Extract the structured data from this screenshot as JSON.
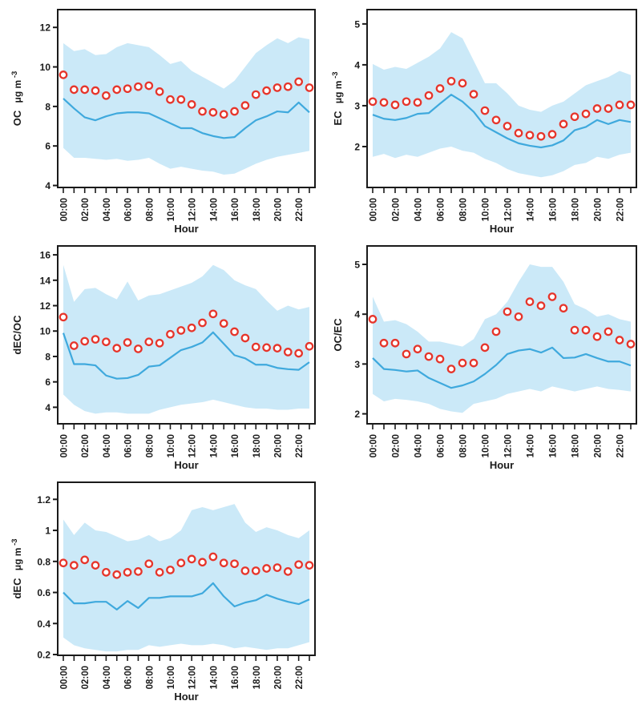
{
  "figure": {
    "xlabel": "Hour",
    "background": "#ffffff",
    "hour_label_every": 2
  },
  "colors": {
    "band": "#cbe9f8",
    "line": "#3fa9dd",
    "marker": "#e6352b",
    "marker_fill": "#ffffff",
    "axis": "#1a1a1a",
    "text": "#1a1a1a"
  },
  "chart_data": [
    {
      "type": "area",
      "name": "chart-oc",
      "ylabel": "OC",
      "yunit": "μg m",
      "ysup": "-3",
      "xlabel": "Hour",
      "yticks": [
        4,
        6,
        8,
        10,
        12
      ],
      "ylim": [
        3.9,
        12.9
      ],
      "grid": false,
      "legend": "none",
      "categories": [
        "00:00",
        "01:00",
        "02:00",
        "03:00",
        "04:00",
        "05:00",
        "06:00",
        "07:00",
        "08:00",
        "09:00",
        "10:00",
        "11:00",
        "12:00",
        "13:00",
        "14:00",
        "15:00",
        "16:00",
        "17:00",
        "18:00",
        "19:00",
        "20:00",
        "21:00",
        "22:00",
        "23:00"
      ],
      "series": [
        {
          "name": "hourly-mean",
          "style": "scatter",
          "marker": "open-circle",
          "values": [
            9.6,
            8.85,
            8.85,
            8.8,
            8.55,
            8.85,
            8.9,
            9.0,
            9.05,
            8.75,
            8.35,
            8.35,
            8.1,
            7.75,
            7.7,
            7.6,
            7.75,
            8.05,
            8.6,
            8.8,
            8.95,
            9.0,
            9.25,
            8.95
          ]
        },
        {
          "name": "median",
          "style": "line",
          "values": [
            8.4,
            7.9,
            7.45,
            7.3,
            7.5,
            7.65,
            7.7,
            7.7,
            7.65,
            7.4,
            7.15,
            6.9,
            6.9,
            6.65,
            6.5,
            6.4,
            6.45,
            6.9,
            7.3,
            7.5,
            7.75,
            7.7,
            8.2,
            7.7
          ]
        },
        {
          "name": "band-upper",
          "style": "band-upper",
          "values": [
            11.2,
            10.8,
            10.9,
            10.6,
            10.65,
            11.0,
            11.2,
            11.1,
            11.0,
            10.6,
            10.15,
            10.3,
            9.8,
            9.5,
            9.2,
            8.9,
            9.3,
            10.0,
            10.7,
            11.1,
            11.45,
            11.2,
            11.5,
            11.4
          ]
        },
        {
          "name": "band-lower",
          "style": "band-lower",
          "values": [
            5.9,
            5.4,
            5.4,
            5.35,
            5.3,
            5.35,
            5.25,
            5.3,
            5.4,
            5.1,
            4.85,
            4.95,
            4.85,
            4.75,
            4.7,
            4.55,
            4.6,
            4.85,
            5.1,
            5.3,
            5.45,
            5.55,
            5.65,
            5.75
          ]
        }
      ]
    },
    {
      "type": "area",
      "name": "chart-ec",
      "ylabel": "EC",
      "yunit": "μg m",
      "ysup": "-3",
      "xlabel": "Hour",
      "yticks": [
        2,
        3,
        4,
        5
      ],
      "ylim": [
        1.0,
        5.35
      ],
      "grid": false,
      "legend": "none",
      "categories": [
        "00:00",
        "01:00",
        "02:00",
        "03:00",
        "04:00",
        "05:00",
        "06:00",
        "07:00",
        "08:00",
        "09:00",
        "10:00",
        "11:00",
        "12:00",
        "13:00",
        "14:00",
        "15:00",
        "16:00",
        "17:00",
        "18:00",
        "19:00",
        "20:00",
        "21:00",
        "22:00",
        "23:00"
      ],
      "series": [
        {
          "name": "hourly-mean",
          "style": "scatter",
          "marker": "open-circle",
          "values": [
            3.1,
            3.08,
            3.02,
            3.1,
            3.08,
            3.25,
            3.42,
            3.6,
            3.55,
            3.28,
            2.88,
            2.65,
            2.5,
            2.33,
            2.28,
            2.25,
            2.3,
            2.55,
            2.73,
            2.8,
            2.93,
            2.93,
            3.02,
            3.02
          ]
        },
        {
          "name": "median",
          "style": "line",
          "values": [
            2.78,
            2.68,
            2.65,
            2.7,
            2.8,
            2.82,
            3.05,
            3.27,
            3.1,
            2.85,
            2.5,
            2.35,
            2.2,
            2.08,
            2.02,
            1.98,
            2.03,
            2.15,
            2.4,
            2.48,
            2.65,
            2.55,
            2.65,
            2.6
          ]
        },
        {
          "name": "band-upper",
          "style": "band-upper",
          "values": [
            4.02,
            3.88,
            3.95,
            3.9,
            4.05,
            4.2,
            4.4,
            4.8,
            4.65,
            4.1,
            3.55,
            3.55,
            3.3,
            3.0,
            2.9,
            2.85,
            3.0,
            3.1,
            3.3,
            3.5,
            3.6,
            3.7,
            3.85,
            3.75
          ]
        },
        {
          "name": "band-lower",
          "style": "band-lower",
          "values": [
            1.75,
            1.82,
            1.72,
            1.8,
            1.75,
            1.85,
            1.95,
            2.0,
            1.9,
            1.85,
            1.7,
            1.6,
            1.45,
            1.35,
            1.3,
            1.25,
            1.3,
            1.4,
            1.55,
            1.6,
            1.75,
            1.7,
            1.8,
            1.85
          ]
        }
      ]
    },
    {
      "type": "area",
      "name": "chart-dec-oc",
      "ylabel": "dEC/OC",
      "yunit": "",
      "ysup": "",
      "xlabel": "Hour",
      "yticks": [
        4,
        6,
        8,
        10,
        12,
        14,
        16
      ],
      "ylim": [
        2.7,
        16.7
      ],
      "grid": false,
      "legend": "none",
      "categories": [
        "00:00",
        "01:00",
        "02:00",
        "03:00",
        "04:00",
        "05:00",
        "06:00",
        "07:00",
        "08:00",
        "09:00",
        "10:00",
        "11:00",
        "12:00",
        "13:00",
        "14:00",
        "15:00",
        "16:00",
        "17:00",
        "18:00",
        "19:00",
        "20:00",
        "21:00",
        "22:00",
        "23:00"
      ],
      "series": [
        {
          "name": "hourly-mean",
          "style": "scatter",
          "marker": "open-circle",
          "values": [
            11.1,
            8.85,
            9.2,
            9.35,
            9.15,
            8.65,
            9.1,
            8.6,
            9.15,
            9.05,
            9.75,
            10.05,
            10.25,
            10.65,
            11.35,
            10.6,
            9.95,
            9.45,
            8.75,
            8.7,
            8.65,
            8.35,
            8.25,
            8.8
          ]
        },
        {
          "name": "median",
          "style": "line",
          "values": [
            9.85,
            7.4,
            7.4,
            7.3,
            6.5,
            6.25,
            6.3,
            6.55,
            7.2,
            7.3,
            7.9,
            8.5,
            8.75,
            9.1,
            9.9,
            9.0,
            8.1,
            7.85,
            7.35,
            7.35,
            7.1,
            7.0,
            6.95,
            7.55
          ]
        },
        {
          "name": "band-upper",
          "style": "band-upper",
          "values": [
            15.2,
            12.3,
            13.3,
            13.4,
            12.9,
            12.5,
            13.9,
            12.4,
            12.8,
            12.9,
            13.2,
            13.5,
            13.8,
            14.3,
            15.2,
            14.8,
            14.0,
            13.6,
            13.3,
            12.4,
            11.6,
            12.0,
            11.7,
            11.9
          ]
        },
        {
          "name": "band-lower",
          "style": "band-lower",
          "values": [
            5.0,
            4.2,
            3.7,
            3.5,
            3.6,
            3.6,
            3.5,
            3.5,
            3.5,
            3.8,
            4.0,
            4.2,
            4.3,
            4.4,
            4.6,
            4.4,
            4.2,
            4.0,
            3.9,
            3.9,
            3.8,
            3.8,
            3.9,
            3.9
          ]
        }
      ]
    },
    {
      "type": "area",
      "name": "chart-oc-ec",
      "ylabel": "OC/EC",
      "yunit": "",
      "ysup": "",
      "xlabel": "Hour",
      "yticks": [
        2,
        3,
        4,
        5
      ],
      "ylim": [
        1.8,
        5.37
      ],
      "grid": false,
      "legend": "none",
      "categories": [
        "00:00",
        "01:00",
        "02:00",
        "03:00",
        "04:00",
        "05:00",
        "06:00",
        "07:00",
        "08:00",
        "09:00",
        "10:00",
        "11:00",
        "12:00",
        "13:00",
        "14:00",
        "15:00",
        "16:00",
        "17:00",
        "18:00",
        "19:00",
        "20:00",
        "21:00",
        "22:00",
        "23:00"
      ],
      "series": [
        {
          "name": "hourly-mean",
          "style": "scatter",
          "marker": "open-circle",
          "values": [
            3.9,
            3.42,
            3.42,
            3.2,
            3.3,
            3.15,
            3.1,
            2.9,
            3.02,
            3.02,
            3.33,
            3.65,
            4.05,
            3.95,
            4.25,
            4.17,
            4.35,
            4.12,
            3.68,
            3.68,
            3.55,
            3.65,
            3.48,
            3.4
          ]
        },
        {
          "name": "median",
          "style": "line",
          "values": [
            3.12,
            2.9,
            2.88,
            2.85,
            2.87,
            2.72,
            2.62,
            2.52,
            2.57,
            2.65,
            2.8,
            2.98,
            3.2,
            3.27,
            3.3,
            3.23,
            3.33,
            3.12,
            3.13,
            3.2,
            3.12,
            3.05,
            3.05,
            2.97
          ]
        },
        {
          "name": "band-upper",
          "style": "band-upper",
          "values": [
            4.35,
            3.85,
            3.88,
            3.8,
            3.65,
            3.45,
            3.45,
            3.4,
            3.35,
            3.5,
            3.9,
            4.0,
            4.25,
            4.65,
            5.0,
            4.95,
            4.95,
            4.65,
            4.2,
            4.1,
            3.95,
            4.0,
            3.9,
            3.85
          ]
        },
        {
          "name": "band-lower",
          "style": "band-lower",
          "values": [
            2.4,
            2.25,
            2.3,
            2.28,
            2.25,
            2.2,
            2.1,
            2.05,
            2.02,
            2.2,
            2.25,
            2.3,
            2.4,
            2.45,
            2.5,
            2.45,
            2.55,
            2.5,
            2.45,
            2.5,
            2.55,
            2.5,
            2.48,
            2.45
          ]
        }
      ]
    },
    {
      "type": "area",
      "name": "chart-dec",
      "ylabel": "dEC",
      "yunit": "μg m",
      "ysup": "-3",
      "xlabel": "Hour",
      "yticks": [
        0.2,
        0.4,
        0.6,
        0.8,
        1.0,
        1.2
      ],
      "ylim": [
        0.195,
        1.31
      ],
      "grid": false,
      "legend": "none",
      "categories": [
        "00:00",
        "01:00",
        "02:00",
        "03:00",
        "04:00",
        "05:00",
        "06:00",
        "07:00",
        "08:00",
        "09:00",
        "10:00",
        "11:00",
        "12:00",
        "13:00",
        "14:00",
        "15:00",
        "16:00",
        "17:00",
        "18:00",
        "19:00",
        "20:00",
        "21:00",
        "22:00",
        "23:00"
      ],
      "series": [
        {
          "name": "hourly-mean",
          "style": "scatter",
          "marker": "open-circle",
          "values": [
            0.79,
            0.775,
            0.81,
            0.775,
            0.73,
            0.715,
            0.73,
            0.735,
            0.785,
            0.73,
            0.745,
            0.79,
            0.815,
            0.795,
            0.83,
            0.79,
            0.785,
            0.74,
            0.74,
            0.755,
            0.76,
            0.735,
            0.78,
            0.775
          ]
        },
        {
          "name": "median",
          "style": "line",
          "values": [
            0.6,
            0.53,
            0.53,
            0.54,
            0.54,
            0.49,
            0.545,
            0.5,
            0.565,
            0.565,
            0.575,
            0.575,
            0.575,
            0.595,
            0.66,
            0.575,
            0.51,
            0.535,
            0.55,
            0.585,
            0.56,
            0.54,
            0.525,
            0.555
          ]
        },
        {
          "name": "band-upper",
          "style": "band-upper",
          "values": [
            1.07,
            0.97,
            1.05,
            1.0,
            0.99,
            0.96,
            0.93,
            0.94,
            0.97,
            0.93,
            0.95,
            1.0,
            1.13,
            1.15,
            1.13,
            1.15,
            1.17,
            1.05,
            0.99,
            1.02,
            1.0,
            0.97,
            0.95,
            1.0
          ]
        },
        {
          "name": "band-lower",
          "style": "band-lower",
          "values": [
            0.31,
            0.26,
            0.24,
            0.23,
            0.22,
            0.22,
            0.23,
            0.23,
            0.26,
            0.25,
            0.26,
            0.27,
            0.26,
            0.26,
            0.27,
            0.26,
            0.24,
            0.25,
            0.24,
            0.23,
            0.24,
            0.24,
            0.26,
            0.28
          ]
        }
      ]
    }
  ]
}
